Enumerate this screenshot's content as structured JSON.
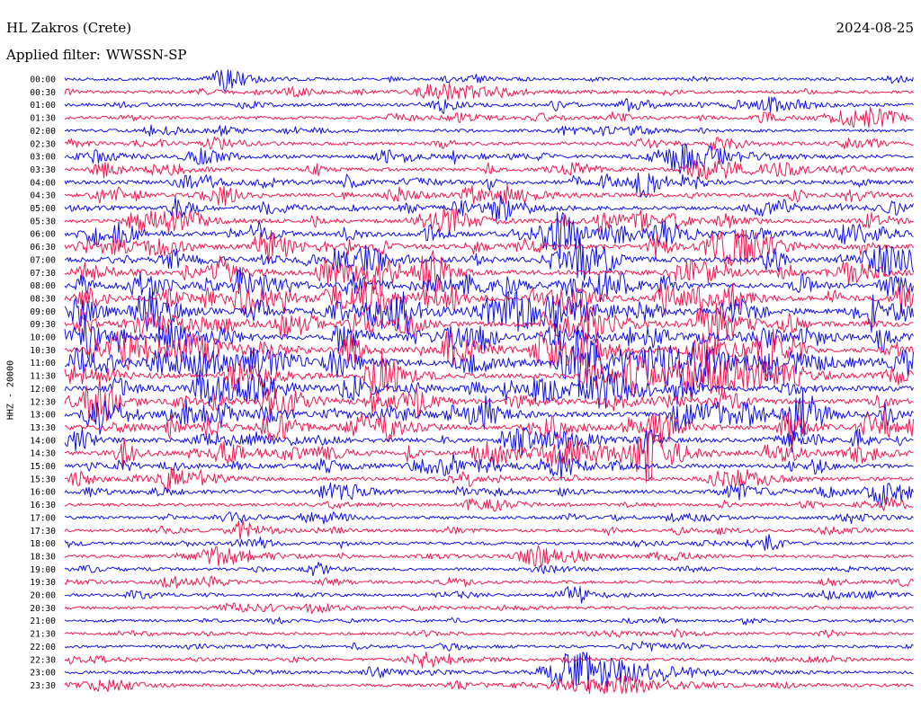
{
  "header": {
    "station": "HL Zakros (Crete)",
    "date": "2024-08-25",
    "filter_label": "Applied filter:",
    "filter_value": "WWSSN-SP"
  },
  "chart_data": {
    "type": "line",
    "title": "HL Zakros (Crete)",
    "subtitle": "Applied filter: WWSSN-SP",
    "date": "2024-08-25",
    "ylabel": "HHZ - 20000",
    "row_labels": [
      "00:00",
      "00:30",
      "01:00",
      "01:30",
      "02:00",
      "02:30",
      "03:00",
      "03:30",
      "04:00",
      "04:30",
      "05:00",
      "05:30",
      "06:00",
      "06:30",
      "07:00",
      "07:30",
      "08:00",
      "08:30",
      "09:00",
      "09:30",
      "10:00",
      "10:30",
      "11:00",
      "11:30",
      "12:00",
      "12:30",
      "13:00",
      "13:30",
      "14:00",
      "14:30",
      "15:00",
      "15:30",
      "16:00",
      "16:30",
      "17:00",
      "17:30",
      "18:00",
      "18:30",
      "19:00",
      "19:30",
      "20:00",
      "20:30",
      "21:00",
      "21:30",
      "22:00",
      "22:30",
      "23:00",
      "23:30"
    ],
    "series_colors": [
      "#1010e8",
      "#f01850"
    ],
    "activity_levels": [
      0.25,
      0.3,
      0.35,
      0.35,
      0.3,
      0.35,
      0.4,
      0.45,
      0.55,
      0.55,
      0.55,
      0.6,
      0.75,
      0.8,
      0.8,
      0.85,
      0.9,
      0.9,
      0.95,
      0.95,
      0.9,
      0.95,
      1.0,
      0.95,
      0.9,
      0.85,
      0.85,
      0.8,
      0.75,
      0.7,
      0.6,
      0.5,
      0.45,
      0.35,
      0.3,
      0.3,
      0.28,
      0.28,
      0.25,
      0.25,
      0.25,
      0.25,
      0.22,
      0.22,
      0.22,
      0.22,
      0.25,
      0.25
    ],
    "events": [
      {
        "row": 0,
        "pos": 0.19,
        "amp": 1.6,
        "dur": 0.02
      },
      {
        "row": 1,
        "pos": 0.45,
        "amp": 1.3,
        "dur": 0.04
      },
      {
        "row": 2,
        "pos": 0.84,
        "amp": 1.4,
        "dur": 0.02
      },
      {
        "row": 3,
        "pos": 0.92,
        "amp": 1.1,
        "dur": 0.03
      },
      {
        "row": 6,
        "pos": 0.73,
        "amp": 1.4,
        "dur": 0.05
      },
      {
        "row": 7,
        "pos": 0.77,
        "amp": 1.3,
        "dur": 0.04
      },
      {
        "row": 11,
        "pos": 0.09,
        "amp": 1.2,
        "dur": 0.02
      },
      {
        "row": 18,
        "pos": 0.59,
        "amp": 1.5,
        "dur": 0.04
      },
      {
        "row": 19,
        "pos": 0.35,
        "amp": 1.5,
        "dur": 0.02
      },
      {
        "row": 22,
        "pos": 0.17,
        "amp": 1.6,
        "dur": 0.06
      },
      {
        "row": 22,
        "pos": 0.85,
        "amp": 1.4,
        "dur": 0.05
      },
      {
        "row": 26,
        "pos": 0.77,
        "amp": 1.5,
        "dur": 0.04
      },
      {
        "row": 28,
        "pos": 0.59,
        "amp": 1.3,
        "dur": 0.03
      },
      {
        "row": 29,
        "pos": 0.6,
        "amp": 1.5,
        "dur": 0.04
      },
      {
        "row": 35,
        "pos": 0.21,
        "amp": 1.3,
        "dur": 0.02
      },
      {
        "row": 36,
        "pos": 0.83,
        "amp": 1.3,
        "dur": 0.01
      },
      {
        "row": 37,
        "pos": 0.19,
        "amp": 1.2,
        "dur": 0.03
      },
      {
        "row": 37,
        "pos": 0.56,
        "amp": 1.0,
        "dur": 0.03
      },
      {
        "row": 40,
        "pos": 0.6,
        "amp": 1.4,
        "dur": 0.02
      },
      {
        "row": 45,
        "pos": 0.43,
        "amp": 1.2,
        "dur": 0.03
      },
      {
        "row": 46,
        "pos": 0.61,
        "amp": 3.0,
        "dur": 0.05
      },
      {
        "row": 47,
        "pos": 0.64,
        "amp": 1.2,
        "dur": 0.06
      }
    ]
  }
}
